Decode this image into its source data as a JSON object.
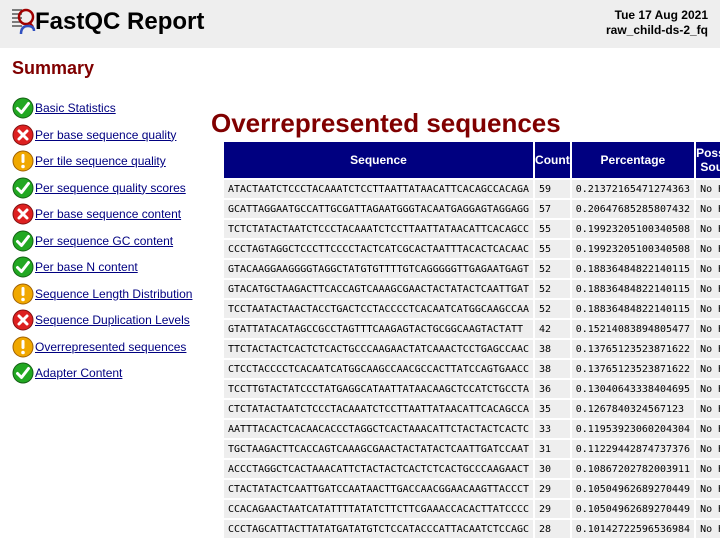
{
  "header": {
    "title": "FastQC Report",
    "date": "Tue 17 Aug 2021",
    "filename": "raw_child-ds-2_fq"
  },
  "summary": {
    "heading": "Summary",
    "modules": [
      {
        "label": "Basic Statistics",
        "status": "pass"
      },
      {
        "label": "Per base sequence quality",
        "status": "fail"
      },
      {
        "label": "Per tile sequence quality",
        "status": "warn"
      },
      {
        "label": "Per sequence quality scores",
        "status": "pass"
      },
      {
        "label": "Per base sequence content",
        "status": "fail"
      },
      {
        "label": "Per sequence GC content",
        "status": "pass"
      },
      {
        "label": "Per base N content",
        "status": "pass"
      },
      {
        "label": "Sequence Length Distribution",
        "status": "warn"
      },
      {
        "label": "Sequence Duplication Levels",
        "status": "fail"
      },
      {
        "label": "Overrepresented sequences",
        "status": "warn"
      },
      {
        "label": "Adapter Content",
        "status": "pass"
      }
    ]
  },
  "section": {
    "heading": "Overrepresented sequences",
    "columns": [
      "Sequence",
      "Count",
      "Percentage",
      "Possible Source"
    ],
    "rows": [
      [
        "ATACTAATCTCCCTACAAATCTCCTTAATTATAACATTCACAGCCACAGA",
        "59",
        "0.21372165471274363",
        "No Hit"
      ],
      [
        "GCATTAGGAATGCCATTGCGATTAGAATGGGTACAATGAGGAGTAGGAGG",
        "57",
        "0.20647685285807432",
        "No Hit"
      ],
      [
        "TCTCTATACTAATCTCCCTACAAATCTCCTTAATTATAACATTCACAGCC",
        "55",
        "0.19923205100340508",
        "No Hit"
      ],
      [
        "CCCTAGTAGGCTCCCTTCCCCTACTCATCGCACTAATTTACACTCACAAC",
        "55",
        "0.19923205100340508",
        "No Hit"
      ],
      [
        "GTACAAGGAAGGGGTAGGCTATGTGTTTTGTCAGGGGGTTGAGAATGAGT",
        "52",
        "0.18836484822140115",
        "No Hit"
      ],
      [
        "GTACATGCTAAGACTTCACCAGTCAAAGCGAACTACTATACTCAATTGAT",
        "52",
        "0.18836484822140115",
        "No Hit"
      ],
      [
        "TCCTAATACTAACTACCTGACTCCTACCCCTCACAATCATGGCAAGCCAA",
        "52",
        "0.18836484822140115",
        "No Hit"
      ],
      [
        "GTATTATACATAGCCGCCTAGTTTCAAGAGTACTGCGGCAAGTACTATT",
        "42",
        "0.15214083894805477",
        "No Hit"
      ],
      [
        "TTCTACTACTCACTCTCACTGCCCAAGAACTATCAAACTCCTGAGCCAAC",
        "38",
        "0.13765123523871622",
        "No Hit"
      ],
      [
        "CTCCTACCCCTCACAATCATGGCAAGCCAACGCCACTTATCCAGTGAACC",
        "38",
        "0.13765123523871622",
        "No Hit"
      ],
      [
        "TCCTTGTACTATCCCTATGAGGCATAATTATAACAAGCTCCATCTGCCTA",
        "36",
        "0.13040643338404695",
        "No Hit"
      ],
      [
        "CTCTATACTAATCTCCCTACAAATCTCCTTAATTATAACATTCACAGCCA",
        "35",
        "0.1267840324567123",
        "No Hit"
      ],
      [
        "AATTTACACTCACAACACCCTAGGCTCACTAAACATTCTACTACTCACTC",
        "33",
        "0.11953923060204304",
        "No Hit"
      ],
      [
        "TGCTAAGACTTCACCAGTCAAAGCGAACTACTATACTCAATTGATCCAAT",
        "31",
        "0.11229442874737376",
        "No Hit"
      ],
      [
        "ACCCTAGGCTCACTAAACATTCTACTACTCACTCTCACTGCCCAAGAACT",
        "30",
        "0.10867202782003911",
        "No Hit"
      ],
      [
        "CTACTATACTCAATTGATCCAATAACTTGACCAACGGAACAAGTTACCCT",
        "29",
        "0.10504962689270449",
        "No Hit"
      ],
      [
        "CCACAGAACTAATCATATTTTATATCTTCTTCGAAACCACACTTATCCCC",
        "29",
        "0.10504962689270449",
        "No Hit"
      ],
      [
        "CCCTAGCATTACTTATATGATATGTCTCCATACCCATTACAATCTCCAGC",
        "28",
        "0.10142722596536984",
        "No Hit"
      ]
    ]
  },
  "colors": {
    "pass": "#22a822",
    "fail": "#dd2020",
    "warn": "#f0a800",
    "heading": "#800000",
    "table_header": "#000080"
  }
}
